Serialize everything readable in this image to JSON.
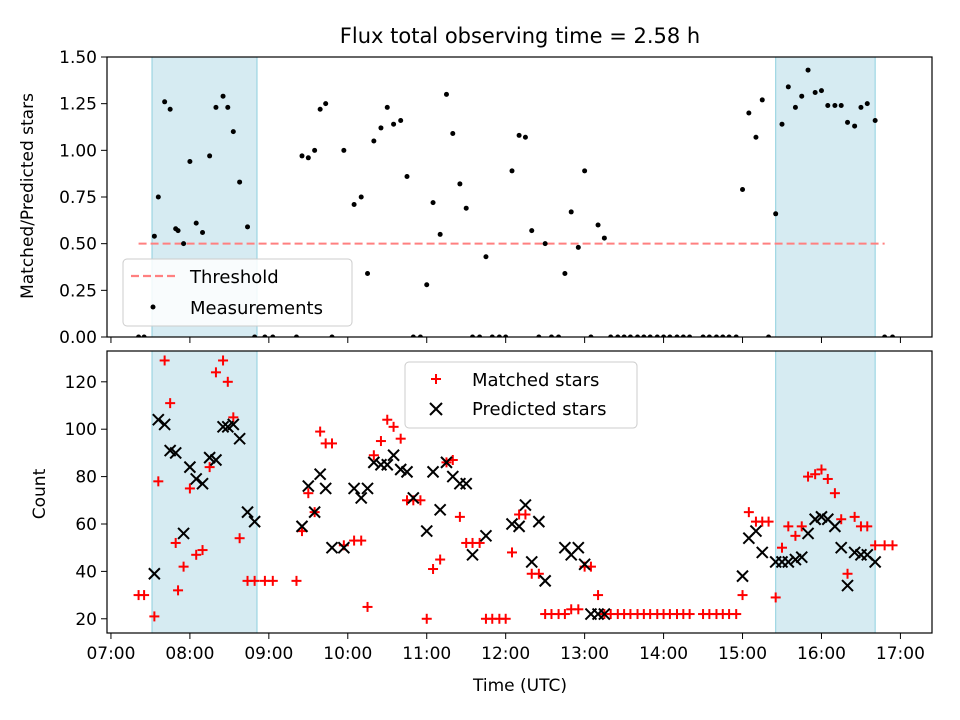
{
  "chart_data": [
    {
      "type": "scatter",
      "title": "Flux total observing time = 2.58 h",
      "xlabel": "",
      "ylabel": "Matched/Predicted stars",
      "xlim": [
        6.95,
        17.4
      ],
      "ylim": [
        0,
        1.5
      ],
      "yticks": [
        0.0,
        0.25,
        0.5,
        0.75,
        1.0,
        1.25,
        1.5
      ],
      "ytick_labels": [
        "0.00",
        "0.25",
        "0.50",
        "0.75",
        "1.00",
        "1.25",
        "1.50"
      ],
      "shaded_intervals": [
        [
          7.52,
          8.85
        ],
        [
          15.42,
          16.68
        ]
      ],
      "threshold": {
        "label": "Threshold",
        "value": 0.5,
        "x_range": [
          7.35,
          16.8
        ],
        "color": "#ff8080"
      },
      "measurements": {
        "label": "Measurements",
        "color": "#000000",
        "x": [
          7.35,
          7.42,
          7.55,
          7.6,
          7.68,
          7.75,
          7.82,
          7.85,
          7.92,
          8.0,
          8.08,
          8.16,
          8.25,
          8.33,
          8.42,
          8.48,
          8.55,
          8.63,
          8.73,
          8.82,
          8.95,
          9.05,
          9.35,
          9.42,
          9.5,
          9.58,
          9.65,
          9.72,
          9.8,
          9.95,
          10.08,
          10.17,
          10.25,
          10.33,
          10.42,
          10.5,
          10.58,
          10.67,
          10.75,
          10.83,
          10.92,
          11.0,
          11.08,
          11.17,
          11.25,
          11.33,
          11.42,
          11.5,
          11.58,
          11.67,
          11.75,
          11.83,
          11.92,
          12.0,
          12.08,
          12.17,
          12.25,
          12.33,
          12.42,
          12.5,
          12.58,
          12.67,
          12.75,
          12.83,
          12.92,
          13.0,
          13.08,
          13.17,
          13.25,
          13.33,
          13.42,
          13.5,
          13.58,
          13.67,
          13.75,
          13.83,
          13.92,
          14.0,
          14.08,
          14.17,
          14.25,
          14.33,
          14.5,
          14.58,
          14.67,
          14.75,
          14.83,
          14.92,
          15.0,
          15.08,
          15.17,
          15.25,
          15.33,
          15.42,
          15.5,
          15.58,
          15.67,
          15.75,
          15.83,
          15.92,
          16.0,
          16.08,
          16.17,
          16.25,
          16.33,
          16.42,
          16.5,
          16.58,
          16.68,
          16.8,
          16.9
        ],
        "y": [
          0,
          0,
          0.54,
          0.75,
          1.26,
          1.22,
          0.58,
          0.57,
          0.5,
          0.94,
          0.61,
          0.56,
          0.97,
          1.23,
          1.29,
          1.23,
          1.1,
          0.83,
          0.59,
          0,
          0,
          0,
          0,
          0.97,
          0.96,
          1.0,
          1.22,
          1.25,
          0,
          1.0,
          0.71,
          0.75,
          0.34,
          1.05,
          1.12,
          1.23,
          1.14,
          1.16,
          0.86,
          0,
          0,
          0.28,
          0.72,
          0.55,
          1.3,
          1.09,
          0.82,
          0.69,
          0,
          0,
          0.43,
          0,
          0,
          0,
          0.89,
          1.08,
          1.07,
          0.57,
          0,
          0.5,
          0,
          0,
          0.34,
          0.67,
          0.48,
          0.89,
          0,
          0.6,
          0.53,
          0,
          0,
          0,
          0,
          0,
          0,
          0,
          0,
          0,
          0,
          0,
          0,
          0,
          0,
          0,
          0,
          0,
          0,
          0,
          0.79,
          1.2,
          1.07,
          1.27,
          0,
          0.66,
          1.14,
          1.34,
          1.23,
          1.29,
          1.43,
          1.31,
          1.32,
          1.24,
          1.24,
          1.24,
          1.15,
          1.13,
          1.23,
          1.25,
          1.16,
          0,
          0
        ]
      },
      "legend": {
        "location": "lower-left",
        "entries": [
          "Threshold",
          "Measurements"
        ]
      }
    },
    {
      "type": "scatter",
      "title": "",
      "xlabel": "Time (UTC)",
      "ylabel": "Count",
      "xlim": [
        6.95,
        17.4
      ],
      "ylim": [
        14,
        133
      ],
      "yticks": [
        20,
        40,
        60,
        80,
        100,
        120
      ],
      "ytick_labels": [
        "20",
        "40",
        "60",
        "80",
        "100",
        "120"
      ],
      "xticks": [
        7,
        8,
        9,
        10,
        11,
        12,
        13,
        14,
        15,
        16,
        17
      ],
      "xtick_labels": [
        "07:00",
        "08:00",
        "09:00",
        "10:00",
        "11:00",
        "12:00",
        "13:00",
        "14:00",
        "15:00",
        "16:00",
        "17:00"
      ],
      "shaded_intervals": [
        [
          7.52,
          8.85
        ],
        [
          15.42,
          16.68
        ]
      ],
      "series": [
        {
          "name": "Matched stars",
          "marker": "plus",
          "color": "#ff0000",
          "x": [
            7.35,
            7.42,
            7.55,
            7.6,
            7.68,
            7.75,
            7.82,
            7.85,
            7.92,
            8.0,
            8.08,
            8.16,
            8.25,
            8.33,
            8.42,
            8.48,
            8.55,
            8.63,
            8.73,
            8.82,
            8.95,
            9.05,
            9.35,
            9.42,
            9.5,
            9.58,
            9.65,
            9.72,
            9.8,
            9.95,
            10.08,
            10.17,
            10.25,
            10.33,
            10.42,
            10.5,
            10.58,
            10.67,
            10.75,
            10.83,
            10.92,
            11.0,
            11.08,
            11.17,
            11.25,
            11.33,
            11.42,
            11.5,
            11.58,
            11.67,
            11.75,
            11.83,
            11.92,
            12.0,
            12.08,
            12.17,
            12.25,
            12.33,
            12.42,
            12.5,
            12.58,
            12.67,
            12.75,
            12.83,
            12.92,
            13.0,
            13.08,
            13.17,
            13.25,
            13.33,
            13.42,
            13.5,
            13.58,
            13.67,
            13.75,
            13.83,
            13.92,
            14.0,
            14.08,
            14.17,
            14.25,
            14.33,
            14.5,
            14.58,
            14.67,
            14.75,
            14.83,
            14.92,
            15.0,
            15.08,
            15.17,
            15.25,
            15.33,
            15.42,
            15.5,
            15.58,
            15.67,
            15.75,
            15.83,
            15.92,
            16.0,
            16.08,
            16.17,
            16.25,
            16.33,
            16.42,
            16.5,
            16.58,
            16.68,
            16.8,
            16.9
          ],
          "values": [
            30,
            30,
            21,
            78,
            129,
            111,
            52,
            32,
            42,
            75,
            47,
            49,
            84,
            124,
            129,
            120,
            105,
            54,
            36,
            36,
            36,
            36,
            36,
            57,
            73,
            65,
            99,
            94,
            94,
            51,
            53,
            53,
            25,
            89,
            95,
            104,
            101,
            96,
            70,
            70,
            70,
            20,
            41,
            45,
            86,
            87,
            63,
            52,
            52,
            52,
            20,
            20,
            20,
            20,
            48,
            64,
            64,
            39,
            39,
            22,
            22,
            22,
            22,
            24,
            24,
            42,
            42,
            30,
            22,
            22,
            22,
            22,
            22,
            22,
            22,
            22,
            22,
            22,
            22,
            22,
            22,
            22,
            22,
            22,
            22,
            22,
            22,
            22,
            30,
            65,
            61,
            61,
            61,
            29,
            50,
            59,
            55,
            59,
            80,
            81,
            83,
            79,
            73,
            62,
            39,
            63,
            59,
            59,
            51,
            51,
            51
          ]
        },
        {
          "name": "Predicted stars",
          "marker": "x",
          "color": "#000000",
          "x": [
            7.55,
            7.6,
            7.68,
            7.75,
            7.82,
            7.92,
            8.0,
            8.08,
            8.16,
            8.25,
            8.33,
            8.42,
            8.48,
            8.55,
            8.63,
            8.73,
            8.82,
            9.42,
            9.5,
            9.58,
            9.65,
            9.72,
            9.8,
            9.95,
            10.08,
            10.17,
            10.25,
            10.33,
            10.42,
            10.5,
            10.58,
            10.67,
            10.75,
            10.83,
            11.0,
            11.08,
            11.17,
            11.25,
            11.33,
            11.42,
            11.5,
            11.58,
            11.75,
            12.08,
            12.17,
            12.25,
            12.33,
            12.42,
            12.5,
            12.75,
            12.83,
            12.92,
            13.0,
            13.08,
            13.17,
            13.25,
            15.0,
            15.08,
            15.17,
            15.25,
            15.42,
            15.5,
            15.58,
            15.67,
            15.75,
            15.83,
            15.92,
            16.0,
            16.08,
            16.17,
            16.25,
            16.33,
            16.42,
            16.5,
            16.58,
            16.68
          ],
          "values": [
            39,
            104,
            102,
            91,
            90,
            56,
            84,
            79,
            77,
            88,
            87,
            101,
            101,
            102,
            96,
            65,
            61,
            59,
            76,
            65,
            81,
            75,
            50,
            50,
            75,
            71,
            75,
            86,
            85,
            85,
            89,
            83,
            82,
            71,
            57,
            82,
            66,
            86,
            80,
            77,
            77,
            47,
            55,
            60,
            59,
            68,
            44,
            61,
            36,
            50,
            47,
            50,
            43,
            22,
            22,
            22,
            38,
            54,
            57,
            48,
            44,
            44,
            44,
            45,
            46,
            56,
            62,
            63,
            62,
            59,
            50,
            34,
            48,
            47,
            47,
            44
          ]
        }
      ],
      "legend": {
        "location": "upper-center",
        "entries": [
          "Matched stars",
          "Predicted stars"
        ]
      }
    }
  ]
}
